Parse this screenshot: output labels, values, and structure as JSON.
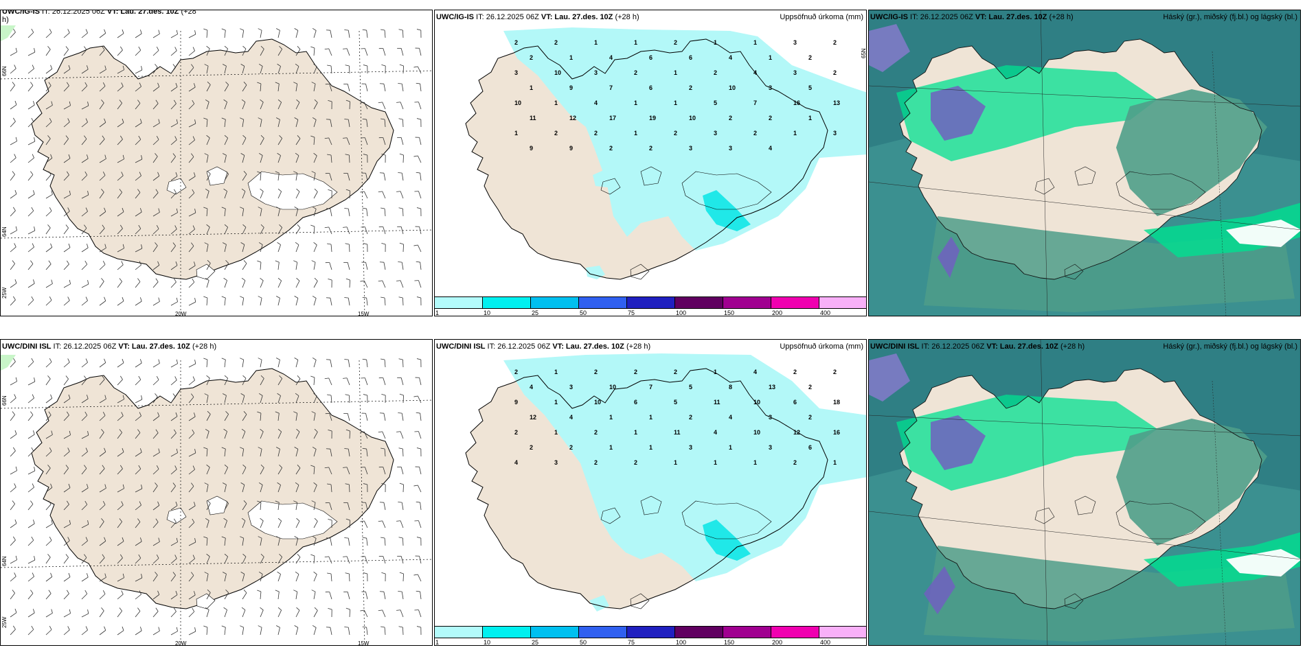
{
  "rows": [
    {
      "wind": {
        "title_model": "UWC/IG-IS",
        "title_rest": " IT: 26.12.2025 06Z ",
        "title_vt": "VT: Lau. 27.des. 10Z",
        "title_lead": " (+28",
        "title_wrap": "h)"
      },
      "precip": {
        "title_model": "UWC/IG-IS",
        "title_rest": " IT: 26.12.2025 06Z ",
        "title_vt": "VT: Lau. 27.des. 10Z",
        "title_lead": " (+28 h)",
        "right": "Uppsöfnuð úrkoma (mm)"
      },
      "cloud": {
        "title_model": "UWC/IG-IS",
        "title_rest": " IT: 26.12.2025 06Z ",
        "title_vt": "VT: Lau. 27.des. 10Z",
        "title_lead": " (+28 h)",
        "right": "Háský (gr.), miðský (fj.bl.) og lágský (bl.)"
      }
    },
    {
      "wind": {
        "title_model": "UWC/DINI ISL",
        "title_rest": " IT: 26.12.2025 06Z ",
        "title_vt": "VT: Lau. 27.des. 10Z",
        "title_lead": " (+28 h)",
        "title_wrap": ""
      },
      "precip": {
        "title_model": "UWC/DINI ISL",
        "title_rest": " IT: 26.12.2025 06Z ",
        "title_vt": "VT: Lau. 27.des. 10Z",
        "title_lead": " (+28 h)",
        "right": "Uppsöfnuð úrkoma (mm)"
      },
      "cloud": {
        "title_model": "UWC/DINI ISL",
        "title_rest": " IT: 26.12.2025 06Z ",
        "title_vt": "VT: Lau. 27.des. 10Z",
        "title_lead": " (+28 h)",
        "right": "Háský (gr.), miðský (fj.bl.) og lágský (bl.)"
      }
    }
  ],
  "axis_labels": {
    "lat_66": "66N",
    "lat_64": "64N",
    "lat_25": "25W",
    "lon_20": "20W",
    "lon_15": "15W"
  },
  "legend": {
    "colors": [
      "#b3fbfb",
      "#00f0f0",
      "#00c0f0",
      "#3060f0",
      "#2020c0",
      "#600060",
      "#a00090",
      "#f000b0",
      "#f8b0f8"
    ],
    "labels": [
      "1",
      "10",
      "25",
      "50",
      "75",
      "100",
      "150",
      "200",
      "400"
    ]
  },
  "colors": {
    "land": "#efe4d6",
    "precip": "#b3f8f8",
    "precip_heavy": "#20e8e8",
    "sea_cloud": "#3f8f8f",
    "low_cloud": "#00e090",
    "high_cloud": "#7060c0"
  },
  "precip_numbers_top": [
    "2",
    "2",
    "1",
    "1",
    "2",
    "1",
    "1",
    "3",
    "2",
    "2",
    "1",
    "4",
    "6",
    "6",
    "4",
    "1",
    "2",
    "3",
    "10",
    "3",
    "2",
    "1",
    "2",
    "4",
    "3",
    "2",
    "1",
    "9",
    "7",
    "6",
    "2",
    "10",
    "3",
    "5",
    "10",
    "1",
    "4",
    "1",
    "1",
    "5",
    "7",
    "16",
    "13",
    "11",
    "12",
    "17",
    "19",
    "10",
    "2",
    "2",
    "1",
    "1",
    "2",
    "2",
    "1",
    "2",
    "3",
    "2",
    "1",
    "3",
    "9",
    "9",
    "2",
    "2",
    "3",
    "3",
    "4"
  ],
  "precip_numbers_bottom": [
    "2",
    "1",
    "2",
    "2",
    "2",
    "1",
    "4",
    "2",
    "2",
    "4",
    "3",
    "10",
    "7",
    "5",
    "8",
    "13",
    "2",
    "9",
    "1",
    "10",
    "6",
    "5",
    "11",
    "10",
    "6",
    "18",
    "12",
    "4",
    "1",
    "1",
    "2",
    "4",
    "3",
    "2",
    "2",
    "1",
    "2",
    "1",
    "11",
    "4",
    "10",
    "12",
    "16",
    "2",
    "2",
    "1",
    "1",
    "3",
    "1",
    "3",
    "6",
    "4",
    "3",
    "2",
    "2",
    "1",
    "1",
    "1",
    "2",
    "1"
  ]
}
